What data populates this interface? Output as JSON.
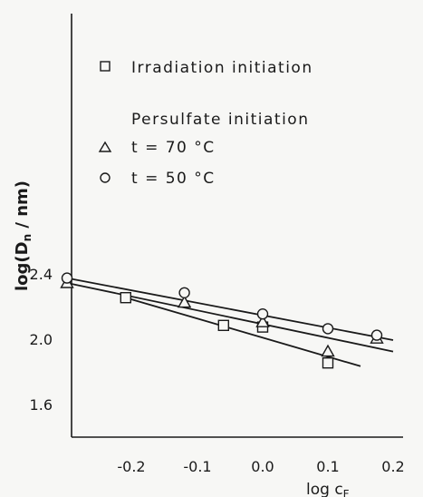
{
  "chart_data": {
    "type": "scatter",
    "xlabel": "log c_F",
    "ylabel": "log(D_n / nm)",
    "xlim": [
      -0.3,
      0.22
    ],
    "ylim": [
      1.45,
      2.6
    ],
    "x_ticks": [
      {
        "value": -0.2,
        "label": "-0.2"
      },
      {
        "value": -0.1,
        "label": "-0.1"
      },
      {
        "value": 0.0,
        "label": "0.0"
      },
      {
        "value": 0.1,
        "label": "0.1"
      },
      {
        "value": 0.2,
        "label": "0.2"
      }
    ],
    "y_ticks": [
      {
        "value": 2.4,
        "label": "2.4"
      },
      {
        "value": 2.0,
        "label": "2.0"
      },
      {
        "value": 1.6,
        "label": "1.6"
      }
    ],
    "legend": {
      "placement": "top-right",
      "entries": [
        {
          "marker": "square",
          "label": "Irradiation initiation"
        },
        {
          "marker": "none",
          "label": "Persulfate initiation"
        },
        {
          "marker": "triangle",
          "label": "t = 70 °C"
        },
        {
          "marker": "circle",
          "label": "t = 50 °C"
        }
      ]
    },
    "series": [
      {
        "marker": "square",
        "points": [
          {
            "x": -0.21,
            "y": 2.26
          },
          {
            "x": -0.06,
            "y": 2.09
          },
          {
            "x": 0.0,
            "y": 2.08
          },
          {
            "x": 0.1,
            "y": 1.86
          }
        ],
        "fit": {
          "x1": -0.21,
          "y1": 2.26,
          "x2": 0.15,
          "y2": 1.84
        }
      },
      {
        "marker": "triangle",
        "points": [
          {
            "x": -0.3,
            "y": 2.35
          },
          {
            "x": -0.12,
            "y": 2.23
          },
          {
            "x": 0.0,
            "y": 2.11
          },
          {
            "x": 0.1,
            "y": 1.93
          },
          {
            "x": 0.175,
            "y": 2.01
          }
        ],
        "fit": {
          "x1": -0.3,
          "y1": 2.35,
          "x2": 0.2,
          "y2": 1.93
        }
      },
      {
        "marker": "circle",
        "points": [
          {
            "x": -0.3,
            "y": 2.38
          },
          {
            "x": -0.12,
            "y": 2.29
          },
          {
            "x": 0.0,
            "y": 2.16
          },
          {
            "x": 0.1,
            "y": 2.07
          },
          {
            "x": 0.175,
            "y": 2.03
          }
        ],
        "fit": {
          "x1": -0.3,
          "y1": 2.38,
          "x2": 0.2,
          "y2": 2.0
        }
      }
    ]
  },
  "colors": {
    "ink": "#1a1a1a",
    "background": "#f7f7f5"
  }
}
